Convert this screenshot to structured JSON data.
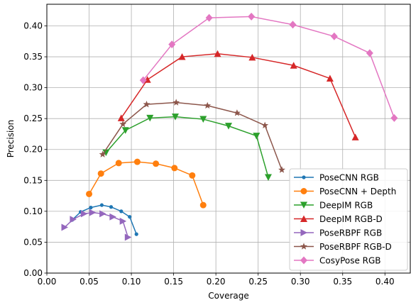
{
  "chart_data": {
    "type": "line",
    "title": "",
    "xlabel": "Coverage",
    "ylabel": "Precision",
    "xlim": [
      0.0,
      0.43
    ],
    "ylim": [
      0.0,
      0.435
    ],
    "grid": true,
    "legend_position": "lower-right",
    "x_ticks": [
      "0.00",
      "0.05",
      "0.10",
      "0.15",
      "0.20",
      "0.25",
      "0.30",
      "0.35",
      "0.40"
    ],
    "y_ticks": [
      "0.00",
      "0.05",
      "0.10",
      "0.15",
      "0.20",
      "0.25",
      "0.30",
      "0.35",
      "0.40"
    ],
    "series": [
      {
        "name": "PoseCNN RGB",
        "color": "#1f77b4",
        "marker": "circle-small",
        "points": [
          [
            0.03,
            0.086
          ],
          [
            0.04,
            0.099
          ],
          [
            0.052,
            0.106
          ],
          [
            0.065,
            0.11
          ],
          [
            0.076,
            0.107
          ],
          [
            0.088,
            0.1
          ],
          [
            0.098,
            0.091
          ],
          [
            0.106,
            0.063
          ]
        ]
      },
      {
        "name": "PoseCNN + Depth",
        "color": "#ff7f0e",
        "marker": "circle",
        "points": [
          [
            0.05,
            0.128
          ],
          [
            0.064,
            0.161
          ],
          [
            0.085,
            0.178
          ],
          [
            0.107,
            0.18
          ],
          [
            0.129,
            0.177
          ],
          [
            0.151,
            0.17
          ],
          [
            0.172,
            0.158
          ],
          [
            0.185,
            0.11
          ]
        ]
      },
      {
        "name": "DeepIM RGB",
        "color": "#2ca02c",
        "marker": "triangle-down",
        "points": [
          [
            0.07,
            0.195
          ],
          [
            0.093,
            0.231
          ],
          [
            0.122,
            0.251
          ],
          [
            0.152,
            0.253
          ],
          [
            0.185,
            0.249
          ],
          [
            0.215,
            0.238
          ],
          [
            0.248,
            0.222
          ],
          [
            0.262,
            0.155
          ]
        ]
      },
      {
        "name": "DeepIM RGB-D",
        "color": "#d62728",
        "marker": "triangle-up",
        "points": [
          [
            0.088,
            0.251
          ],
          [
            0.119,
            0.313
          ],
          [
            0.16,
            0.35
          ],
          [
            0.202,
            0.355
          ],
          [
            0.243,
            0.349
          ],
          [
            0.292,
            0.336
          ],
          [
            0.335,
            0.315
          ],
          [
            0.365,
            0.22
          ]
        ]
      },
      {
        "name": "PoseRBPF RGB",
        "color": "#9467bd",
        "marker": "triangle-right",
        "points": [
          [
            0.021,
            0.074
          ],
          [
            0.031,
            0.087
          ],
          [
            0.044,
            0.096
          ],
          [
            0.054,
            0.098
          ],
          [
            0.066,
            0.096
          ],
          [
            0.078,
            0.091
          ],
          [
            0.09,
            0.084
          ],
          [
            0.096,
            0.058
          ]
        ]
      },
      {
        "name": "PoseRBPF RGB-D",
        "color": "#8c564b",
        "marker": "star",
        "points": [
          [
            0.066,
            0.192
          ],
          [
            0.09,
            0.241
          ],
          [
            0.118,
            0.273
          ],
          [
            0.153,
            0.276
          ],
          [
            0.19,
            0.271
          ],
          [
            0.225,
            0.259
          ],
          [
            0.258,
            0.239
          ],
          [
            0.278,
            0.167
          ]
        ]
      },
      {
        "name": "CosyPose RGB",
        "color": "#e377c2",
        "marker": "diamond",
        "points": [
          [
            0.114,
            0.312
          ],
          [
            0.148,
            0.37
          ],
          [
            0.192,
            0.413
          ],
          [
            0.242,
            0.415
          ],
          [
            0.291,
            0.402
          ],
          [
            0.34,
            0.383
          ],
          [
            0.382,
            0.356
          ],
          [
            0.411,
            0.251
          ]
        ]
      }
    ]
  }
}
